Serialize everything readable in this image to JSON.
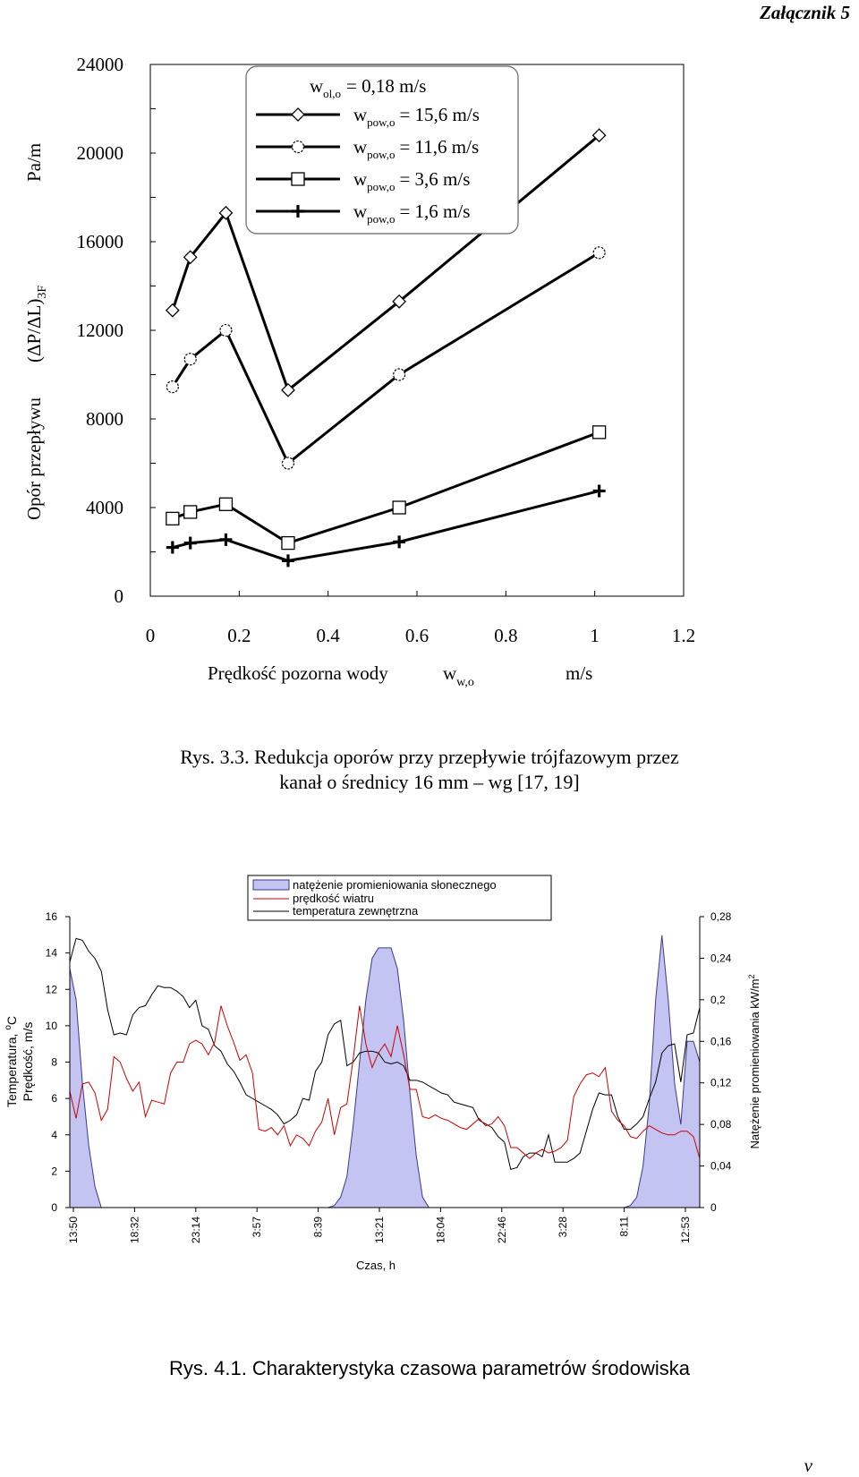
{
  "page": {
    "annex_label": "Załącznik 5",
    "page_number": "v",
    "figure1_caption_line1": "Rys. 3.3. Redukcja oporów przy przepływie trójfazowym przez",
    "figure1_caption_line2": "kanał o średnicy 16 mm – wg [17, 19]",
    "figure2_caption": "Rys. 4.1. Charakterystyka czasowa parametrów środowiska"
  },
  "chart_data": [
    {
      "type": "line",
      "title": "",
      "xlabel": "Prędkość pozorna wody",
      "xlabel_symbol": "w",
      "xlabel_sub": "w,o",
      "xunit": "m/s",
      "ylabel": "Opór przepływu",
      "ylabel_symbol": "(ΔP/ΔL)",
      "ylabel_sub": "3F",
      "yunit": "Pa/m",
      "xlim": [
        0,
        1.2
      ],
      "ylim": [
        0,
        24000
      ],
      "xticks": [
        "0",
        "0.2",
        "0.4",
        "0.6",
        "0.8",
        "1",
        "1.2"
      ],
      "yticks": [
        "0",
        "4000",
        "8000",
        "12000",
        "16000",
        "20000",
        "24000"
      ],
      "legend_header": "w",
      "legend_header_sub": "ol,o",
      "legend_header_value": "= 0,18 m/s",
      "legend_placement": "top-center",
      "grid": false,
      "x": [
        0.05,
        0.09,
        0.17,
        0.31,
        0.56,
        1.01
      ],
      "series": [
        {
          "name": "= 15,6 m/s",
          "sym": "w",
          "sub": "pow,o",
          "marker": "diamond",
          "values": [
            12900,
            15300,
            17300,
            9300,
            13300,
            20800
          ]
        },
        {
          "name": "= 11,6 m/s",
          "sym": "w",
          "sub": "pow,o",
          "marker": "circle",
          "values": [
            9450,
            10700,
            12000,
            6000,
            10000,
            15500
          ]
        },
        {
          "name": "= 3,6 m/s",
          "sym": "w",
          "sub": "pow,o",
          "marker": "square",
          "values": [
            3500,
            3800,
            4150,
            2400,
            4000,
            7400
          ]
        },
        {
          "name": "= 1,6 m/s",
          "sym": "w",
          "sub": "pow,o",
          "marker": "plus",
          "values": [
            2200,
            2400,
            2550,
            1600,
            2450,
            4750
          ]
        }
      ]
    },
    {
      "type": "line",
      "title": "",
      "xlabel": "Czas, h",
      "ylabel": "Temperatura, °C\nPrędkość, m/s",
      "ylabel_line1": "Temperatura, ",
      "ylabel_deg": "o",
      "ylabel_line1_end": "C",
      "ylabel_line2": "Prędkość, m/s",
      "y2label": "Natężenie promieniowania kW/m²",
      "y2label_text": "Natężenie promieniowania kW/m",
      "y2label_sup": "2",
      "ylim": [
        0,
        16
      ],
      "y2lim": [
        0,
        0.28
      ],
      "yticks": [
        "0",
        "2",
        "4",
        "6",
        "8",
        "10",
        "12",
        "14",
        "16"
      ],
      "y2ticks": [
        "0",
        "0,04",
        "0,08",
        "0,12",
        "0,16",
        "0,2",
        "0,24",
        "0,28"
      ],
      "xticks": [
        "13:50",
        "18:32",
        "23:14",
        "3:57",
        "8:39",
        "13:21",
        "18:04",
        "22:46",
        "3:28",
        "8:11",
        "12:53"
      ],
      "legend_placement": "top-center",
      "grid": false,
      "x_index": [
        0,
        1,
        2,
        3,
        4,
        5,
        6,
        7,
        8,
        9,
        10,
        11,
        12,
        13,
        14,
        15,
        16,
        17,
        18,
        19,
        20,
        21,
        22,
        23,
        24,
        25,
        26,
        27,
        28,
        29,
        30,
        31,
        32,
        33,
        34,
        35,
        36,
        37,
        38,
        39,
        40,
        41,
        42,
        43,
        44,
        45,
        46,
        47,
        48,
        49,
        50,
        51,
        52,
        53,
        54,
        55,
        56,
        57,
        58,
        59,
        60,
        61,
        62,
        63,
        64,
        65,
        66,
        67,
        68,
        69,
        70,
        71,
        72,
        73,
        74,
        75,
        76,
        77,
        78,
        79,
        80,
        81,
        82,
        83,
        84,
        85,
        86,
        87,
        88,
        89,
        90,
        91,
        92,
        93,
        94,
        95,
        96,
        97,
        98,
        99,
        100
      ],
      "series": [
        {
          "name": "natężenie promieniowania słonecznego",
          "axis": "right",
          "style": "area",
          "color": "#c4c4f2",
          "values": [
            0.23,
            0.2,
            0.12,
            0.06,
            0.02,
            0,
            0,
            0,
            0,
            0,
            0,
            0,
            0,
            0,
            0,
            0,
            0,
            0,
            0,
            0,
            0,
            0,
            0,
            0,
            0,
            0,
            0,
            0,
            0,
            0,
            0,
            0,
            0,
            0,
            0,
            0,
            0,
            0,
            0,
            0,
            0,
            0,
            0.002,
            0.01,
            0.03,
            0.08,
            0.14,
            0.2,
            0.24,
            0.25,
            0.25,
            0.25,
            0.23,
            0.18,
            0.11,
            0.05,
            0.01,
            0,
            0,
            0,
            0,
            0,
            0,
            0,
            0,
            0,
            0,
            0,
            0,
            0,
            0,
            0,
            0,
            0,
            0,
            0,
            0,
            0,
            0,
            0,
            0,
            0,
            0,
            0,
            0,
            0,
            0,
            0,
            0,
            0.002,
            0.01,
            0.04,
            0.1,
            0.2,
            0.262,
            0.2,
            0.12,
            0.08,
            0.16,
            0.16,
            0.14
          ]
        },
        {
          "name": "prędkość wiatru",
          "axis": "left",
          "style": "line",
          "color": "#cc0000",
          "values": [
            6.4,
            4.9,
            6.8,
            6.9,
            6.3,
            4.8,
            5.4,
            8.3,
            8.0,
            7.1,
            6.4,
            6.9,
            5.0,
            5.9,
            5.8,
            5.7,
            7.4,
            8.0,
            8.0,
            9.0,
            9.2,
            9.0,
            8.4,
            9.1,
            11.1,
            10.0,
            9.1,
            8.1,
            8.4,
            7.4,
            4.3,
            4.2,
            4.4,
            4.0,
            4.5,
            3.4,
            4.0,
            3.8,
            3.4,
            4.2,
            4.7,
            6.0,
            4.0,
            5.5,
            5.7,
            8.2,
            11.1,
            9.0,
            7.7,
            8.5,
            9.0,
            8.3,
            10.0,
            8.4,
            6.5,
            6.5,
            5.0,
            4.9,
            5.1,
            4.9,
            4.8,
            4.6,
            4.4,
            4.3,
            4.6,
            4.9,
            4.5,
            4.6,
            5.0,
            4.5,
            3.3,
            3.3,
            3.0,
            2.7,
            3.0,
            3.2,
            3.0,
            3.1,
            3.3,
            3.7,
            6.1,
            6.8,
            7.3,
            7.4,
            7.2,
            7.7,
            5.3,
            4.8,
            4.5,
            3.9,
            3.8,
            4.2,
            4.5,
            4.3,
            4.1,
            4.0,
            4.0,
            4.2,
            4.2,
            3.9,
            2.7
          ]
        },
        {
          "name": "temperatura zewnętrzna",
          "axis": "left",
          "style": "line",
          "color": "#000000",
          "values": [
            13.5,
            14.8,
            14.7,
            14.1,
            13.7,
            13.0,
            10.9,
            9.5,
            9.6,
            9.5,
            10.6,
            11.0,
            11.1,
            11.7,
            12.2,
            12.1,
            12.1,
            11.9,
            11.6,
            11.0,
            11.4,
            10.0,
            9.8,
            8.9,
            8.6,
            7.9,
            7.5,
            6.9,
            6.2,
            6.0,
            5.8,
            5.6,
            5.4,
            5.1,
            4.6,
            4.8,
            5.1,
            6.0,
            5.9,
            7.5,
            8.0,
            9.5,
            10.1,
            10.3,
            7.8,
            8.0,
            8.5,
            8.6,
            8.6,
            8.5,
            8.0,
            7.9,
            8.0,
            7.8,
            7.0,
            7.0,
            6.9,
            6.7,
            6.5,
            6.3,
            6.2,
            5.8,
            5.7,
            5.6,
            5.5,
            4.8,
            4.6,
            4.4,
            3.9,
            3.6,
            2.1,
            2.2,
            2.8,
            3.0,
            3.0,
            2.8,
            4.0,
            2.5,
            2.5,
            2.5,
            2.7,
            3.0,
            4.2,
            5.4,
            6.3,
            6.2,
            6.2,
            5.0,
            4.3,
            4.3,
            4.6,
            5.0,
            6.0,
            6.9,
            8.5,
            8.9,
            9.0,
            6.9,
            9.5,
            9.6,
            11.0
          ]
        }
      ]
    }
  ]
}
